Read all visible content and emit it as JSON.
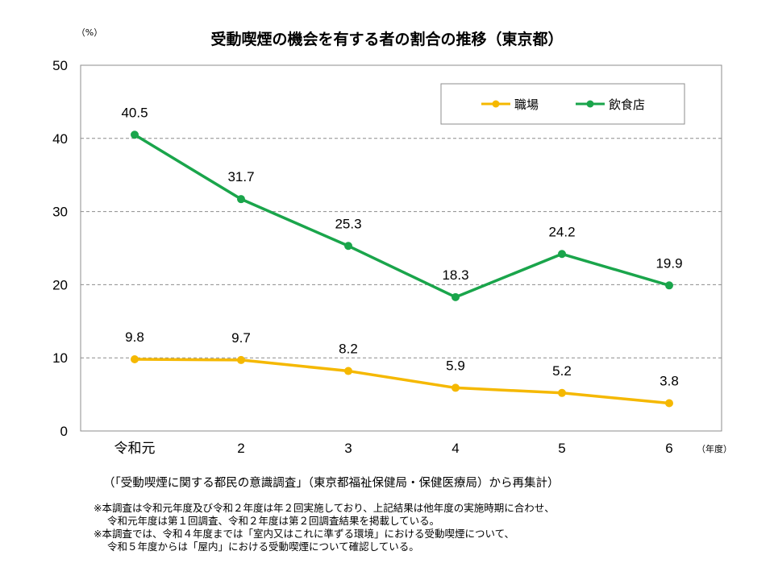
{
  "chart_data": {
    "type": "line",
    "title": "受動喫煙の機会を有する者の割合の推移（東京都）",
    "ylabel": "（%）",
    "xlabel": "（年度）",
    "ylim": [
      0,
      50
    ],
    "yticks": [
      0,
      10,
      20,
      30,
      40,
      50
    ],
    "grid": true,
    "legend_position": "top-right",
    "categories": [
      "令和元",
      "2",
      "3",
      "4",
      "5",
      "6"
    ],
    "series": [
      {
        "name": "職場",
        "color": "#f5b800",
        "values": [
          9.8,
          9.7,
          8.2,
          5.9,
          5.2,
          3.8
        ],
        "labels": [
          "9.8",
          "9.7",
          "8.2",
          "5.9",
          "5.2",
          "3.8"
        ]
      },
      {
        "name": "飲食店",
        "color": "#1aa54b",
        "values": [
          40.5,
          31.7,
          25.3,
          18.3,
          24.2,
          19.9
        ],
        "labels": [
          "40.5",
          "31.7",
          "25.3",
          "18.3",
          "24.2",
          "19.9"
        ]
      }
    ]
  },
  "source": "（「受動喫煙に関する都民の意識調査」（東京都福祉保健局・保健医療局）から再集計）",
  "notes": [
    "※本調査は令和元年度及び令和２年度は年２回実施しており、上記結果は他年度の実施時期に合わせ、",
    "令和元年度は第１回調査、令和２年度は第２回調査結果を掲載している。",
    "※本調査では、令和４年度までは「室内又はこれに準ずる環境」における受動喫煙について、",
    "令和５年度からは「屋内」における受動喫煙について確認している。"
  ]
}
